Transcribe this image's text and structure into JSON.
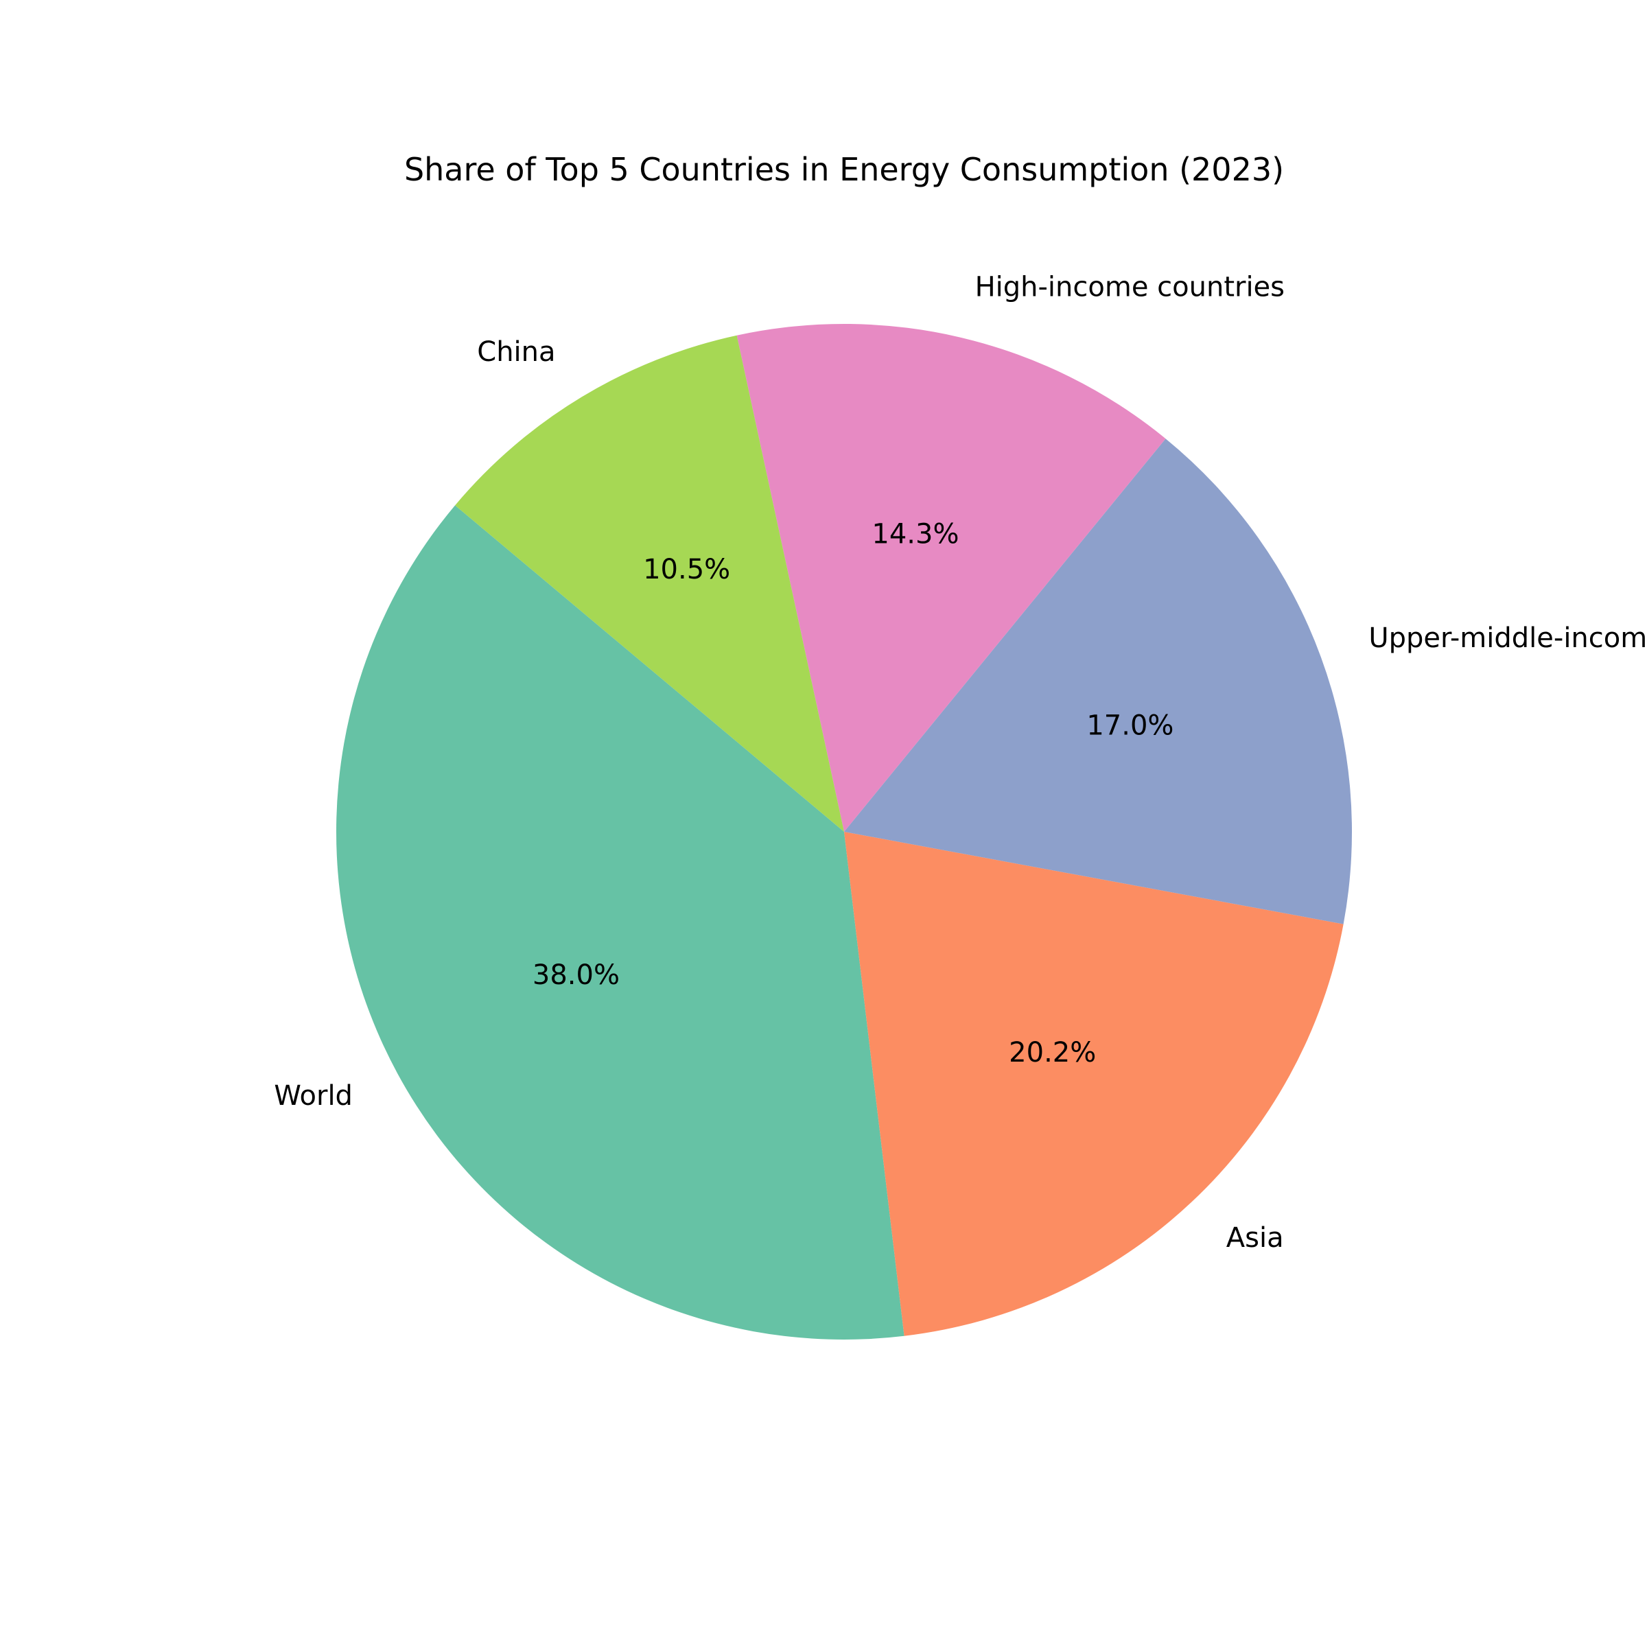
{
  "chart_data": {
    "type": "pie",
    "title": "Share of Top 5 Countries in Energy Consumption (2023)",
    "slices": [
      {
        "label": "World",
        "percent": 38.0,
        "percent_label": "38.0%",
        "color": "#66c2a5"
      },
      {
        "label": "Asia",
        "percent": 20.2,
        "percent_label": "20.2%",
        "color": "#fc8d62"
      },
      {
        "label": "Upper-middle-income countries",
        "percent": 17.0,
        "percent_label": "17.0%",
        "color": "#8da0cb"
      },
      {
        "label": "High-income countries",
        "percent": 14.3,
        "percent_label": "14.3%",
        "color": "#e78ac3"
      },
      {
        "label": "China",
        "percent": 10.5,
        "percent_label": "10.5%",
        "color": "#a6d854"
      }
    ],
    "start_angle_deg": 140,
    "direction": "counterclockwise",
    "legend": "none"
  }
}
